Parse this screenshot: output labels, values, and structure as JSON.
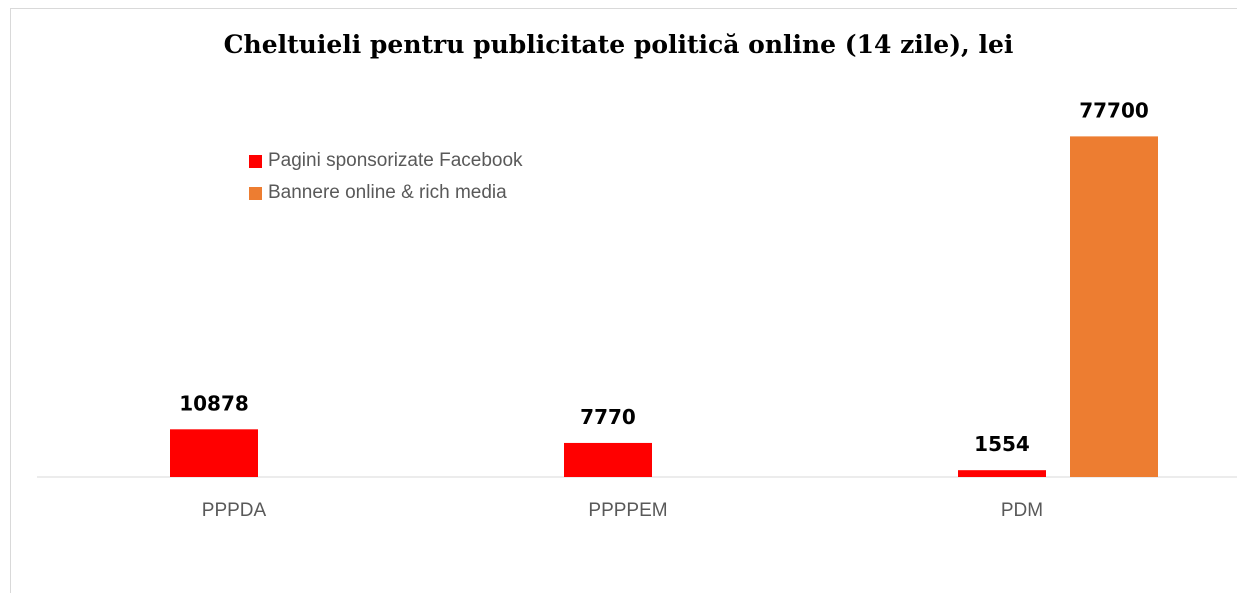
{
  "chart_data": {
    "type": "bar",
    "title": "Cheltuieli pentru publicitate politică online (14 zile), lei",
    "categories": [
      "PPPDA",
      "PPPPEM",
      "PDM"
    ],
    "series": [
      {
        "name": "Pagini sponsorizate Facebook",
        "color": "#ff0000",
        "values": [
          10878,
          7770,
          1554
        ]
      },
      {
        "name": "Bannere online & rich media",
        "color": "#ed7d31",
        "values": [
          null,
          null,
          77700
        ]
      }
    ],
    "xlabel": "",
    "ylabel": "",
    "ylim": [
      0,
      86000
    ],
    "grid": false,
    "legend_position": "top-left",
    "data_labels": true
  }
}
